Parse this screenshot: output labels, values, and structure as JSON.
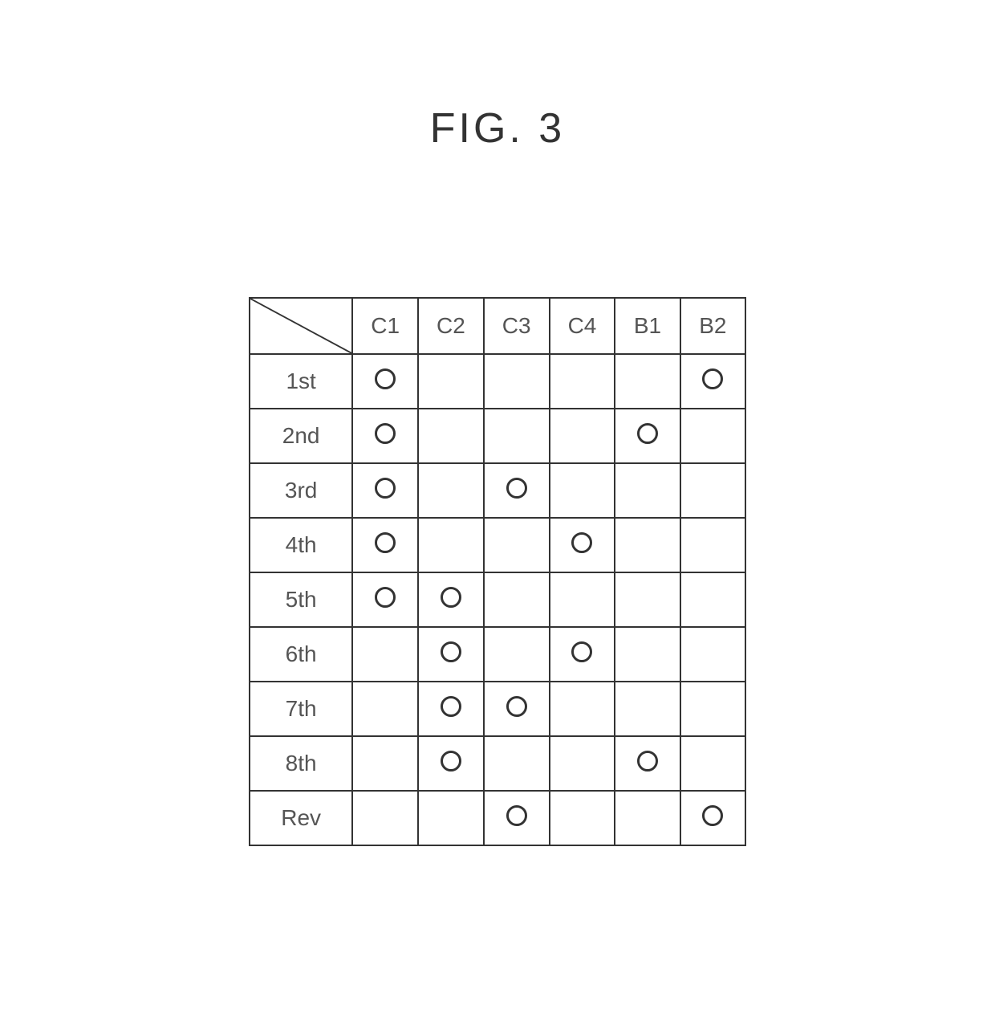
{
  "figure": {
    "title": "FIG. 3"
  },
  "table": {
    "type": "table",
    "columns": [
      "C1",
      "C2",
      "C3",
      "C4",
      "B1",
      "B2"
    ],
    "rows": [
      {
        "label": "1st",
        "marks": [
          true,
          false,
          false,
          false,
          false,
          true
        ]
      },
      {
        "label": "2nd",
        "marks": [
          true,
          false,
          false,
          false,
          true,
          false
        ]
      },
      {
        "label": "3rd",
        "marks": [
          true,
          false,
          true,
          false,
          false,
          false
        ]
      },
      {
        "label": "4th",
        "marks": [
          true,
          false,
          false,
          true,
          false,
          false
        ]
      },
      {
        "label": "5th",
        "marks": [
          true,
          true,
          false,
          false,
          false,
          false
        ]
      },
      {
        "label": "6th",
        "marks": [
          false,
          true,
          false,
          true,
          false,
          false
        ]
      },
      {
        "label": "7th",
        "marks": [
          false,
          true,
          true,
          false,
          false,
          false
        ]
      },
      {
        "label": "8th",
        "marks": [
          false,
          true,
          false,
          false,
          true,
          false
        ]
      },
      {
        "label": "Rev",
        "marks": [
          false,
          false,
          true,
          false,
          false,
          true
        ]
      }
    ],
    "styling": {
      "border_color": "#333333",
      "border_width": 2,
      "text_color": "#555555",
      "background_color": "#ffffff",
      "header_fontsize": 28,
      "cell_fontsize": 28,
      "label_col_width": 160,
      "data_col_width": 100,
      "header_row_height": 70,
      "data_row_height": 68,
      "circle_diameter": 26,
      "circle_stroke": 3,
      "circle_color": "#333333"
    }
  }
}
